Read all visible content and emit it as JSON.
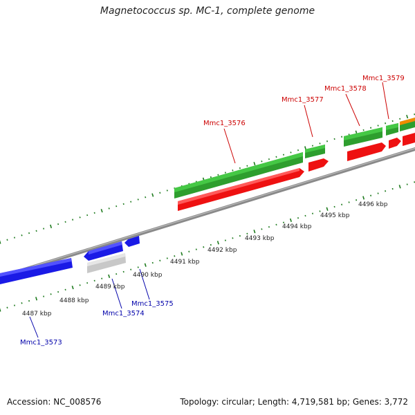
{
  "title": "Magnetococcus sp. MC-1, complete genome",
  "footer": {
    "accession": "Accession: NC_008576",
    "topology": "Topology: circular; Length: 4,719,581 bp; Genes: 3,772"
  },
  "colors": {
    "forward_gene": "#2e9e2e",
    "forward_cds": "#ee1111",
    "reverse_gene": "#1a1ae6",
    "other_feature": "#c8c8c8",
    "backbone": "#8a8a8a",
    "tick": "#1d7a1d",
    "label_forward": "#cc0000",
    "label_reverse": "#0000aa",
    "accent_orange": "#f08c00"
  },
  "scale": {
    "unit": "kbp",
    "labels": [
      "4487 kbp",
      "4488 kbp",
      "4489 kbp",
      "4490 kbp",
      "4491 kbp",
      "4492 kbp",
      "4493 kbp",
      "4494 kbp",
      "4495 kbp",
      "4496 kbp"
    ]
  },
  "genes": [
    {
      "name": "Mmc1_3573",
      "strand": "reverse"
    },
    {
      "name": "Mmc1_3574",
      "strand": "reverse"
    },
    {
      "name": "Mmc1_3575",
      "strand": "reverse"
    },
    {
      "name": "Mmc1_3576",
      "strand": "forward"
    },
    {
      "name": "Mmc1_3577",
      "strand": "forward"
    },
    {
      "name": "Mmc1_3578",
      "strand": "forward"
    },
    {
      "name": "Mmc1_3579",
      "strand": "forward"
    }
  ]
}
